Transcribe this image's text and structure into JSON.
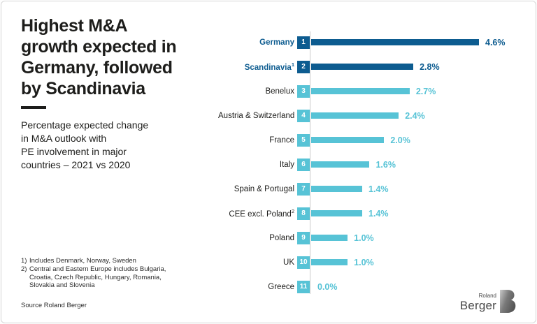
{
  "title": {
    "lines": [
      "Highest M&A",
      "growth expected in",
      "Germany, followed",
      "by Scandinavia"
    ]
  },
  "subtitle": {
    "lines": [
      "Percentage expected change",
      "in M&A outlook with",
      "PE involvement in major",
      "countries – 2021 vs 2020"
    ]
  },
  "footnotes": [
    {
      "marker": "1)",
      "text": "Includes Denmark, Norway, Sweden"
    },
    {
      "marker": "2)",
      "text": "Central and Eastern Europe includes Bulgaria, Croatia, Czech Republic, Hungary, Romania, Slovakia and Slovenia"
    }
  ],
  "source": "Source Roland Berger",
  "logo": {
    "top": "Roland",
    "bottom": "Berger"
  },
  "colors": {
    "navy": "#0d5c90",
    "cyan": "#57c3d6",
    "text": "#1d1d1b",
    "axis": "#c9c9c9"
  },
  "chart_data": {
    "type": "bar",
    "orientation": "horizontal",
    "title": "Highest M&A growth expected in Germany, followed by Scandinavia",
    "subtitle": "Percentage expected change in M&A outlook with PE involvement in major countries – 2021 vs 2020",
    "xlabel": "",
    "ylabel": "",
    "xlim": [
      0,
      4.6
    ],
    "grid": false,
    "legend": false,
    "categories": [
      "Germany",
      "Scandinavia",
      "Benelux",
      "Austria & Switzerland",
      "France",
      "Italy",
      "Spain & Portugal",
      "CEE excl. Poland",
      "Poland",
      "UK",
      "Greece"
    ],
    "superscripts": [
      "",
      "1",
      "",
      "",
      "",
      "",
      "",
      "2",
      "",
      "",
      ""
    ],
    "ranks": [
      1,
      2,
      3,
      4,
      5,
      6,
      7,
      8,
      9,
      10,
      11
    ],
    "values": [
      4.6,
      2.8,
      2.7,
      2.4,
      2.0,
      1.6,
      1.4,
      1.4,
      1.0,
      1.0,
      0.0
    ],
    "value_labels": [
      "4.6%",
      "2.8%",
      "2.7%",
      "2.4%",
      "2.0%",
      "1.6%",
      "1.4%",
      "1.4%",
      "1.0%",
      "1.0%",
      "0.0%"
    ],
    "highlighted": [
      true,
      true,
      false,
      false,
      false,
      false,
      false,
      false,
      false,
      false,
      false
    ],
    "bar_color_highlight": "#0d5c90",
    "bar_color_default": "#57c3d6"
  }
}
